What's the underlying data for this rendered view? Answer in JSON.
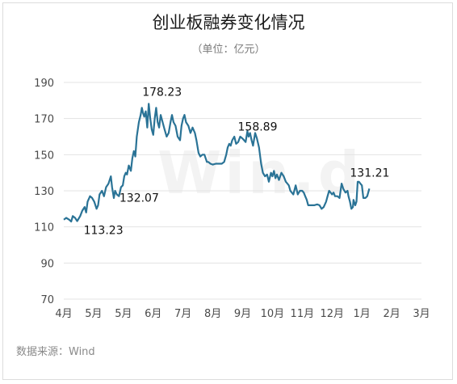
{
  "chart_data": {
    "type": "line",
    "title": "创业板融券变化情况",
    "subtitle": "（单位：亿元）",
    "source": "数据来源：Wind",
    "watermark": "Win.d",
    "ylim": [
      70,
      190
    ],
    "yticks": [
      70,
      90,
      110,
      130,
      150,
      170,
      190
    ],
    "x_tick_labels": [
      "4月",
      "5月",
      "5月",
      "6月",
      "7月",
      "8月",
      "9月",
      "10月",
      "11月",
      "12月",
      "1月",
      "2月",
      "3月"
    ],
    "grid": true,
    "series": [
      {
        "color": "#2a7396",
        "values": [
          [
            0.0,
            114
          ],
          [
            0.08,
            115
          ],
          [
            0.18,
            114
          ],
          [
            0.25,
            113
          ],
          [
            0.3,
            116
          ],
          [
            0.38,
            115
          ],
          [
            0.45,
            113.23
          ],
          [
            0.55,
            116
          ],
          [
            0.62,
            119
          ],
          [
            0.7,
            121
          ],
          [
            0.75,
            118
          ],
          [
            0.8,
            124
          ],
          [
            0.88,
            127
          ],
          [
            0.95,
            126
          ],
          [
            1.02,
            124
          ],
          [
            1.1,
            120
          ],
          [
            1.15,
            122
          ],
          [
            1.2,
            128
          ],
          [
            1.28,
            130
          ],
          [
            1.35,
            127
          ],
          [
            1.42,
            132
          ],
          [
            1.5,
            134
          ],
          [
            1.58,
            138
          ],
          [
            1.62,
            132
          ],
          [
            1.68,
            126
          ],
          [
            1.72,
            130
          ],
          [
            1.78,
            128
          ],
          [
            1.85,
            127
          ],
          [
            1.92,
            132.07
          ],
          [
            1.98,
            133
          ],
          [
            2.03,
            138
          ],
          [
            2.08,
            140
          ],
          [
            2.12,
            139
          ],
          [
            2.18,
            144
          ],
          [
            2.25,
            141
          ],
          [
            2.3,
            148
          ],
          [
            2.35,
            152
          ],
          [
            2.4,
            149
          ],
          [
            2.45,
            160
          ],
          [
            2.52,
            168
          ],
          [
            2.58,
            172
          ],
          [
            2.62,
            176
          ],
          [
            2.66,
            173
          ],
          [
            2.7,
            171
          ],
          [
            2.75,
            174
          ],
          [
            2.8,
            165
          ],
          [
            2.85,
            178.23
          ],
          [
            2.9,
            170
          ],
          [
            2.95,
            164
          ],
          [
            3.0,
            161
          ],
          [
            3.05,
            170
          ],
          [
            3.1,
            176
          ],
          [
            3.15,
            168
          ],
          [
            3.2,
            165
          ],
          [
            3.25,
            172
          ],
          [
            3.3,
            169
          ],
          [
            3.38,
            164
          ],
          [
            3.45,
            160
          ],
          [
            3.52,
            162
          ],
          [
            3.58,
            168
          ],
          [
            3.63,
            172
          ],
          [
            3.68,
            168
          ],
          [
            3.75,
            166
          ],
          [
            3.82,
            160
          ],
          [
            3.9,
            158
          ],
          [
            3.95,
            166
          ],
          [
            4.0,
            170
          ],
          [
            4.05,
            172
          ],
          [
            4.1,
            168
          ],
          [
            4.18,
            166
          ],
          [
            4.25,
            162
          ],
          [
            4.32,
            165
          ],
          [
            4.4,
            162
          ],
          [
            4.45,
            158
          ],
          [
            4.52,
            151
          ],
          [
            4.58,
            149
          ],
          [
            4.65,
            150
          ],
          [
            4.72,
            150
          ],
          [
            4.8,
            146
          ],
          [
            4.85,
            146
          ],
          [
            4.92,
            145
          ],
          [
            5.0,
            144.5
          ],
          [
            5.1,
            145
          ],
          [
            5.2,
            145
          ],
          [
            5.3,
            145
          ],
          [
            5.38,
            146
          ],
          [
            5.45,
            150
          ],
          [
            5.5,
            154
          ],
          [
            5.55,
            156
          ],
          [
            5.6,
            155
          ],
          [
            5.65,
            158
          ],
          [
            5.72,
            160
          ],
          [
            5.78,
            156
          ],
          [
            5.85,
            157
          ],
          [
            5.92,
            160
          ],
          [
            6.0,
            158.89
          ],
          [
            6.05,
            158
          ],
          [
            6.1,
            157
          ],
          [
            6.16,
            163
          ],
          [
            6.2,
            160
          ],
          [
            6.25,
            162
          ],
          [
            6.3,
            158
          ],
          [
            6.35,
            155
          ],
          [
            6.42,
            162
          ],
          [
            6.48,
            159
          ],
          [
            6.55,
            154
          ],
          [
            6.62,
            145
          ],
          [
            6.68,
            140
          ],
          [
            6.75,
            138
          ],
          [
            6.82,
            139
          ],
          [
            6.88,
            135
          ],
          [
            6.95,
            140
          ],
          [
            7.0,
            138
          ],
          [
            7.05,
            141
          ],
          [
            7.1,
            137
          ],
          [
            7.15,
            139
          ],
          [
            7.22,
            136
          ],
          [
            7.3,
            140
          ],
          [
            7.38,
            138
          ],
          [
            7.45,
            135
          ],
          [
            7.5,
            134
          ],
          [
            7.55,
            133
          ],
          [
            7.6,
            130
          ],
          [
            7.65,
            129
          ],
          [
            7.7,
            128
          ],
          [
            7.78,
            133
          ],
          [
            7.85,
            128
          ],
          [
            7.92,
            130
          ],
          [
            8.0,
            130
          ],
          [
            8.05,
            129
          ],
          [
            8.1,
            127
          ],
          [
            8.15,
            125
          ],
          [
            8.2,
            122
          ],
          [
            8.3,
            122
          ],
          [
            8.4,
            122
          ],
          [
            8.5,
            122.5
          ],
          [
            8.58,
            122
          ],
          [
            8.65,
            120
          ],
          [
            8.72,
            121
          ],
          [
            8.8,
            124
          ],
          [
            8.85,
            127
          ],
          [
            8.9,
            130
          ],
          [
            8.95,
            129
          ],
          [
            9.0,
            128
          ],
          [
            9.05,
            129
          ],
          [
            9.1,
            127
          ],
          [
            9.18,
            127
          ],
          [
            9.25,
            126
          ],
          [
            9.32,
            134
          ],
          [
            9.38,
            131
          ],
          [
            9.45,
            129
          ],
          [
            9.52,
            130
          ],
          [
            9.55,
            127
          ],
          [
            9.6,
            124
          ],
          [
            9.65,
            120
          ],
          [
            9.7,
            121
          ],
          [
            9.72,
            125
          ],
          [
            9.78,
            122
          ],
          [
            9.82,
            124
          ],
          [
            9.86,
            135
          ],
          [
            9.9,
            135
          ],
          [
            9.95,
            134
          ],
          [
            10.0,
            133
          ],
          [
            10.05,
            126
          ],
          [
            10.12,
            126
          ],
          [
            10.18,
            127
          ],
          [
            10.25,
            131.21
          ]
        ]
      }
    ],
    "annotations": [
      {
        "x": 0.45,
        "y": 113.23,
        "text": "113.23"
      },
      {
        "x": 1.92,
        "y": 132.07,
        "text": "132.07"
      },
      {
        "x": 2.85,
        "y": 178.23,
        "text": "178.23"
      },
      {
        "x": 6.0,
        "y": 158.89,
        "text": "158.89"
      },
      {
        "x": 10.25,
        "y": 131.21,
        "text": "131.21"
      }
    ]
  }
}
